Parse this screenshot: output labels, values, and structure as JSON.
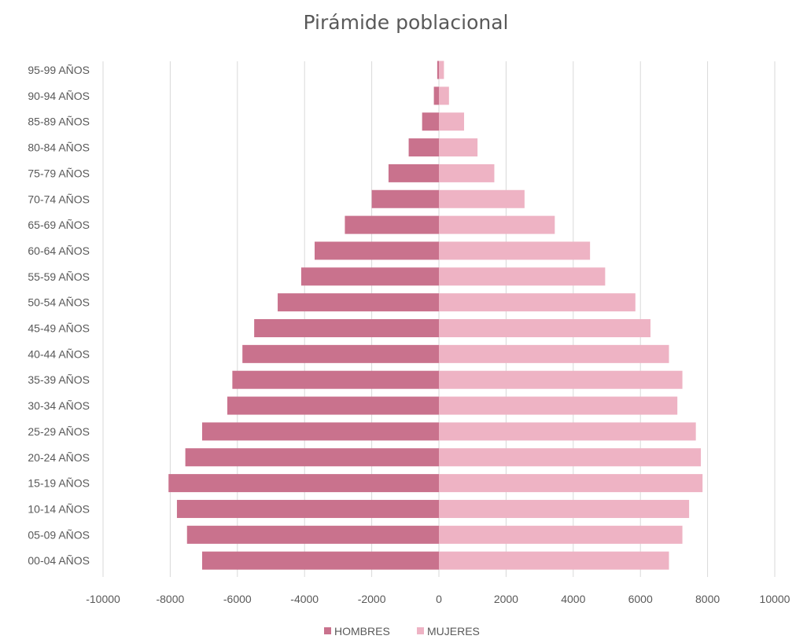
{
  "chart_data": {
    "type": "bar",
    "orientation": "horizontal",
    "title": "Pirámide poblacional",
    "categories": [
      "95-99 AÑOS",
      "90-94 AÑOS",
      "85-89 AÑOS",
      "80-84 AÑOS",
      "75-79 AÑOS",
      "70-74 AÑOS",
      "65-69 AÑOS",
      "60-64 AÑOS",
      "55-59 AÑOS",
      "50-54 AÑOS",
      "45-49 AÑOS",
      "40-44 AÑOS",
      "35-39 AÑOS",
      "30-34 AÑOS",
      "25-29 AÑOS",
      "20-24 AÑOS",
      "15-19 AÑOS",
      "10-14 AÑOS",
      "05-09 AÑOS",
      "00-04 AÑOS"
    ],
    "series": [
      {
        "name": "HOMBRES",
        "color": "#c9728d",
        "values": [
          -50,
          -150,
          -500,
          -900,
          -1500,
          -2000,
          -2800,
          -3700,
          -4100,
          -4800,
          -5500,
          -5850,
          -6150,
          -6300,
          -7050,
          -7550,
          -8050,
          -7800,
          -7500,
          -7050
        ]
      },
      {
        "name": "MUJERES",
        "color": "#eeb3c4",
        "values": [
          150,
          300,
          750,
          1150,
          1650,
          2550,
          3450,
          4500,
          4950,
          5850,
          6300,
          6850,
          7250,
          7100,
          7650,
          7800,
          7850,
          7450,
          7250,
          6850
        ]
      }
    ],
    "x_ticks": [
      "-10000",
      "-8000",
      "-6000",
      "-4000",
      "-2000",
      "0",
      "2000",
      "4000",
      "6000",
      "8000",
      "10000"
    ],
    "xlim": [
      -10000,
      10000
    ],
    "grid": true,
    "legend": "bottom"
  }
}
